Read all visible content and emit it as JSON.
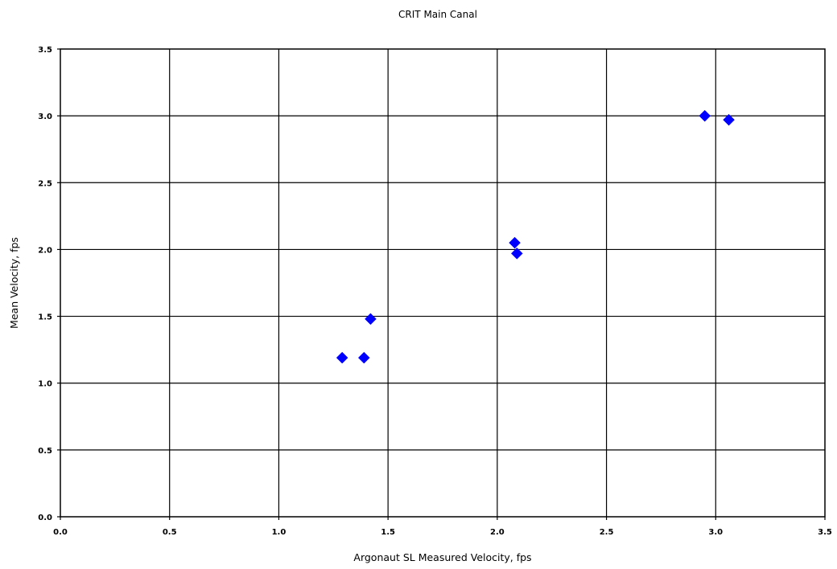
{
  "chart_data": {
    "type": "scatter",
    "title": "CRIT Main Canal",
    "xlabel": "Argonaut SL Measured Velocity, fps",
    "ylabel": "Mean Velocity, fps",
    "xlim": [
      0,
      3.5
    ],
    "ylim": [
      0,
      3.5
    ],
    "xticks": [
      "0.0",
      "0.5",
      "1.0",
      "1.5",
      "2.0",
      "2.5",
      "3.0",
      "3.5"
    ],
    "yticks": [
      "0.0",
      "0.5",
      "1.0",
      "1.5",
      "2.0",
      "2.5",
      "3.0",
      "3.5"
    ],
    "grid": true,
    "legend": "none",
    "marker": "diamond",
    "marker_color": "#0000ff",
    "points": [
      {
        "x": 1.29,
        "y": 1.19
      },
      {
        "x": 1.39,
        "y": 1.19
      },
      {
        "x": 1.42,
        "y": 1.48
      },
      {
        "x": 2.08,
        "y": 2.05
      },
      {
        "x": 2.09,
        "y": 1.97
      },
      {
        "x": 2.95,
        "y": 3.0
      },
      {
        "x": 3.06,
        "y": 2.97
      }
    ]
  }
}
